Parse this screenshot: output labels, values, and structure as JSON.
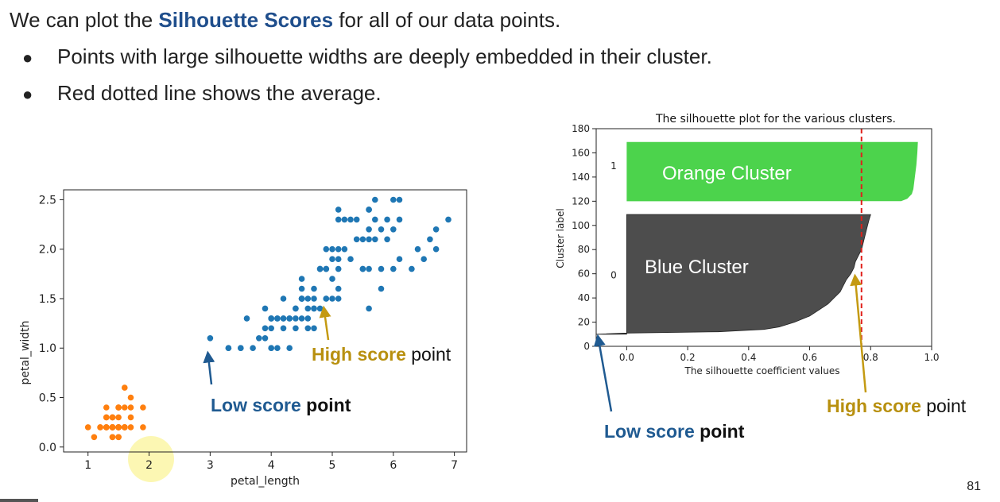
{
  "slide": {
    "heading_pre": "We can plot the ",
    "heading_highlight": "Silhouette Scores",
    "heading_post": " for all of our data points.",
    "bullets": [
      "Points with large silhouette widths are deeply embedded in their cluster.",
      "Red dotted line shows the average."
    ],
    "page_number": "81"
  },
  "annotations": {
    "scatter_high_strong": "High score",
    "scatter_high_rest": " point",
    "scatter_low_strong": "Low score",
    "scatter_low_rest": " point",
    "sil_high_strong": "High score",
    "sil_high_rest": " point",
    "sil_low_strong": "Low score",
    "sil_low_rest": " point"
  },
  "chart_data": [
    {
      "type": "scatter",
      "xlabel": "petal_length",
      "ylabel": "petal_width",
      "xlim": [
        0.6,
        7.2
      ],
      "ylim": [
        -0.05,
        2.6
      ],
      "xticks": [
        1,
        2,
        3,
        4,
        5,
        6,
        7
      ],
      "yticks": [
        0.0,
        0.5,
        1.0,
        1.5,
        2.0,
        2.5
      ],
      "ytick_labels": [
        "0.0",
        "0.5",
        "1.0",
        "1.5",
        "2.0",
        "2.5"
      ],
      "series": [
        {
          "color": "#ff7f0e",
          "points": [
            [
              1.4,
              0.2
            ],
            [
              1.4,
              0.2
            ],
            [
              1.3,
              0.2
            ],
            [
              1.5,
              0.2
            ],
            [
              1.4,
              0.2
            ],
            [
              1.7,
              0.4
            ],
            [
              1.4,
              0.3
            ],
            [
              1.5,
              0.2
            ],
            [
              1.4,
              0.2
            ],
            [
              1.5,
              0.1
            ],
            [
              1.5,
              0.2
            ],
            [
              1.6,
              0.2
            ],
            [
              1.4,
              0.1
            ],
            [
              1.1,
              0.1
            ],
            [
              1.2,
              0.2
            ],
            [
              1.5,
              0.4
            ],
            [
              1.3,
              0.4
            ],
            [
              1.4,
              0.3
            ],
            [
              1.7,
              0.3
            ],
            [
              1.5,
              0.3
            ],
            [
              1.7,
              0.2
            ],
            [
              1.5,
              0.4
            ],
            [
              1.0,
              0.2
            ],
            [
              1.7,
              0.5
            ],
            [
              1.9,
              0.2
            ],
            [
              1.6,
              0.2
            ],
            [
              1.6,
              0.4
            ],
            [
              1.5,
              0.2
            ],
            [
              1.4,
              0.2
            ],
            [
              1.6,
              0.2
            ],
            [
              1.6,
              0.2
            ],
            [
              1.5,
              0.4
            ],
            [
              1.5,
              0.1
            ],
            [
              1.4,
              0.2
            ],
            [
              1.5,
              0.2
            ],
            [
              1.2,
              0.2
            ],
            [
              1.3,
              0.2
            ],
            [
              1.4,
              0.1
            ],
            [
              1.3,
              0.2
            ],
            [
              1.5,
              0.2
            ],
            [
              1.3,
              0.3
            ],
            [
              1.3,
              0.3
            ],
            [
              1.3,
              0.2
            ],
            [
              1.6,
              0.6
            ],
            [
              1.9,
              0.4
            ],
            [
              1.4,
              0.3
            ],
            [
              1.6,
              0.2
            ],
            [
              1.4,
              0.2
            ],
            [
              1.5,
              0.2
            ],
            [
              1.4,
              0.2
            ]
          ]
        },
        {
          "color": "#1f77b4",
          "points": [
            [
              4.7,
              1.4
            ],
            [
              4.5,
              1.5
            ],
            [
              4.9,
              1.5
            ],
            [
              4.0,
              1.3
            ],
            [
              4.6,
              1.5
            ],
            [
              4.5,
              1.3
            ],
            [
              4.7,
              1.6
            ],
            [
              3.3,
              1.0
            ],
            [
              4.6,
              1.3
            ],
            [
              3.9,
              1.4
            ],
            [
              3.5,
              1.0
            ],
            [
              4.2,
              1.5
            ],
            [
              4.0,
              1.0
            ],
            [
              4.7,
              1.4
            ],
            [
              3.6,
              1.3
            ],
            [
              4.4,
              1.4
            ],
            [
              4.5,
              1.5
            ],
            [
              4.1,
              1.0
            ],
            [
              4.5,
              1.5
            ],
            [
              3.9,
              1.1
            ],
            [
              4.8,
              1.8
            ],
            [
              4.0,
              1.3
            ],
            [
              4.9,
              1.5
            ],
            [
              4.7,
              1.2
            ],
            [
              4.3,
              1.3
            ],
            [
              4.4,
              1.4
            ],
            [
              4.8,
              1.4
            ],
            [
              5.0,
              1.7
            ],
            [
              4.5,
              1.5
            ],
            [
              3.5,
              1.0
            ],
            [
              3.8,
              1.1
            ],
            [
              3.7,
              1.0
            ],
            [
              3.9,
              1.2
            ],
            [
              5.1,
              1.6
            ],
            [
              4.5,
              1.5
            ],
            [
              4.5,
              1.6
            ],
            [
              4.7,
              1.5
            ],
            [
              4.4,
              1.3
            ],
            [
              4.1,
              1.3
            ],
            [
              4.0,
              1.3
            ],
            [
              4.4,
              1.2
            ],
            [
              4.6,
              1.4
            ],
            [
              4.0,
              1.2
            ],
            [
              3.3,
              1.0
            ],
            [
              4.2,
              1.3
            ],
            [
              4.2,
              1.2
            ],
            [
              4.2,
              1.3
            ],
            [
              4.3,
              1.3
            ],
            [
              3.0,
              1.1
            ],
            [
              4.1,
              1.3
            ],
            [
              6.0,
              2.5
            ],
            [
              5.1,
              1.9
            ],
            [
              5.9,
              2.1
            ],
            [
              5.6,
              1.8
            ],
            [
              5.8,
              2.2
            ],
            [
              6.6,
              2.1
            ],
            [
              4.5,
              1.7
            ],
            [
              6.3,
              1.8
            ],
            [
              5.8,
              1.8
            ],
            [
              6.1,
              2.5
            ],
            [
              5.1,
              2.0
            ],
            [
              5.3,
              1.9
            ],
            [
              5.5,
              2.1
            ],
            [
              5.0,
              2.0
            ],
            [
              5.1,
              2.4
            ],
            [
              5.3,
              2.3
            ],
            [
              5.5,
              1.8
            ],
            [
              6.7,
              2.2
            ],
            [
              6.9,
              2.3
            ],
            [
              5.0,
              1.5
            ],
            [
              5.7,
              2.3
            ],
            [
              4.9,
              2.0
            ],
            [
              6.7,
              2.0
            ],
            [
              4.9,
              1.8
            ],
            [
              5.7,
              2.1
            ],
            [
              6.0,
              1.8
            ],
            [
              4.8,
              1.8
            ],
            [
              4.9,
              1.8
            ],
            [
              5.6,
              2.1
            ],
            [
              5.8,
              1.6
            ],
            [
              6.1,
              1.9
            ],
            [
              6.4,
              2.0
            ],
            [
              5.6,
              2.2
            ],
            [
              5.1,
              1.5
            ],
            [
              5.6,
              1.4
            ],
            [
              6.1,
              2.3
            ],
            [
              5.6,
              2.4
            ],
            [
              5.5,
              1.8
            ],
            [
              4.8,
              1.8
            ],
            [
              5.4,
              2.1
            ],
            [
              5.6,
              2.4
            ],
            [
              5.1,
              2.3
            ],
            [
              5.9,
              2.3
            ],
            [
              5.7,
              2.5
            ],
            [
              5.2,
              2.3
            ],
            [
              5.0,
              1.9
            ],
            [
              5.2,
              2.0
            ],
            [
              5.4,
              2.3
            ],
            [
              5.1,
              1.8
            ],
            [
              4.0,
              1.0
            ],
            [
              6.0,
              2.2
            ],
            [
              4.6,
              1.2
            ],
            [
              6.5,
              1.9
            ],
            [
              4.3,
              1.0
            ]
          ]
        }
      ]
    },
    {
      "type": "area",
      "title": "The silhouette plot for the various clusters.",
      "xlabel": "The silhouette coefficient values",
      "ylabel": "Cluster label",
      "xlim": [
        -0.1,
        1.0
      ],
      "ylim": [
        0,
        180
      ],
      "xticks": [
        0.0,
        0.2,
        0.4,
        0.6,
        0.8,
        1.0
      ],
      "xtick_labels": [
        "0.0",
        "0.2",
        "0.4",
        "0.6",
        "0.8",
        "1.0"
      ],
      "yticks": [
        0,
        20,
        40,
        60,
        80,
        100,
        120,
        140,
        160,
        180
      ],
      "ytick_labels": [
        "0",
        "20",
        "40",
        "60",
        "80",
        "100",
        "120",
        "140",
        "160",
        "180"
      ],
      "average_line_x": 0.77,
      "series": [
        {
          "name": "Blue Cluster",
          "cluster_label": "0",
          "color": "#4d4d4d",
          "y_range": [
            10,
            109
          ],
          "profile": [
            [
              10,
              -0.1
            ],
            [
              11,
              0.0
            ],
            [
              12,
              0.3
            ],
            [
              14,
              0.45
            ],
            [
              16,
              0.5
            ],
            [
              20,
              0.55
            ],
            [
              25,
              0.6
            ],
            [
              30,
              0.63
            ],
            [
              35,
              0.66
            ],
            [
              40,
              0.68
            ],
            [
              45,
              0.7
            ],
            [
              50,
              0.71
            ],
            [
              55,
              0.72
            ],
            [
              60,
              0.735
            ],
            [
              65,
              0.745
            ],
            [
              70,
              0.75
            ],
            [
              75,
              0.76
            ],
            [
              80,
              0.77
            ],
            [
              85,
              0.775
            ],
            [
              90,
              0.78
            ],
            [
              95,
              0.785
            ],
            [
              100,
              0.79
            ],
            [
              105,
              0.795
            ],
            [
              109,
              0.8
            ]
          ]
        },
        {
          "name": "Orange Cluster",
          "cluster_label": "1",
          "color": "#4cd34c",
          "y_range": [
            120,
            169
          ],
          "profile": [
            [
              120,
              0.9
            ],
            [
              122,
              0.92
            ],
            [
              126,
              0.935
            ],
            [
              130,
              0.94
            ],
            [
              140,
              0.945
            ],
            [
              150,
              0.95
            ],
            [
              160,
              0.953
            ],
            [
              169,
              0.955
            ]
          ]
        }
      ]
    }
  ]
}
